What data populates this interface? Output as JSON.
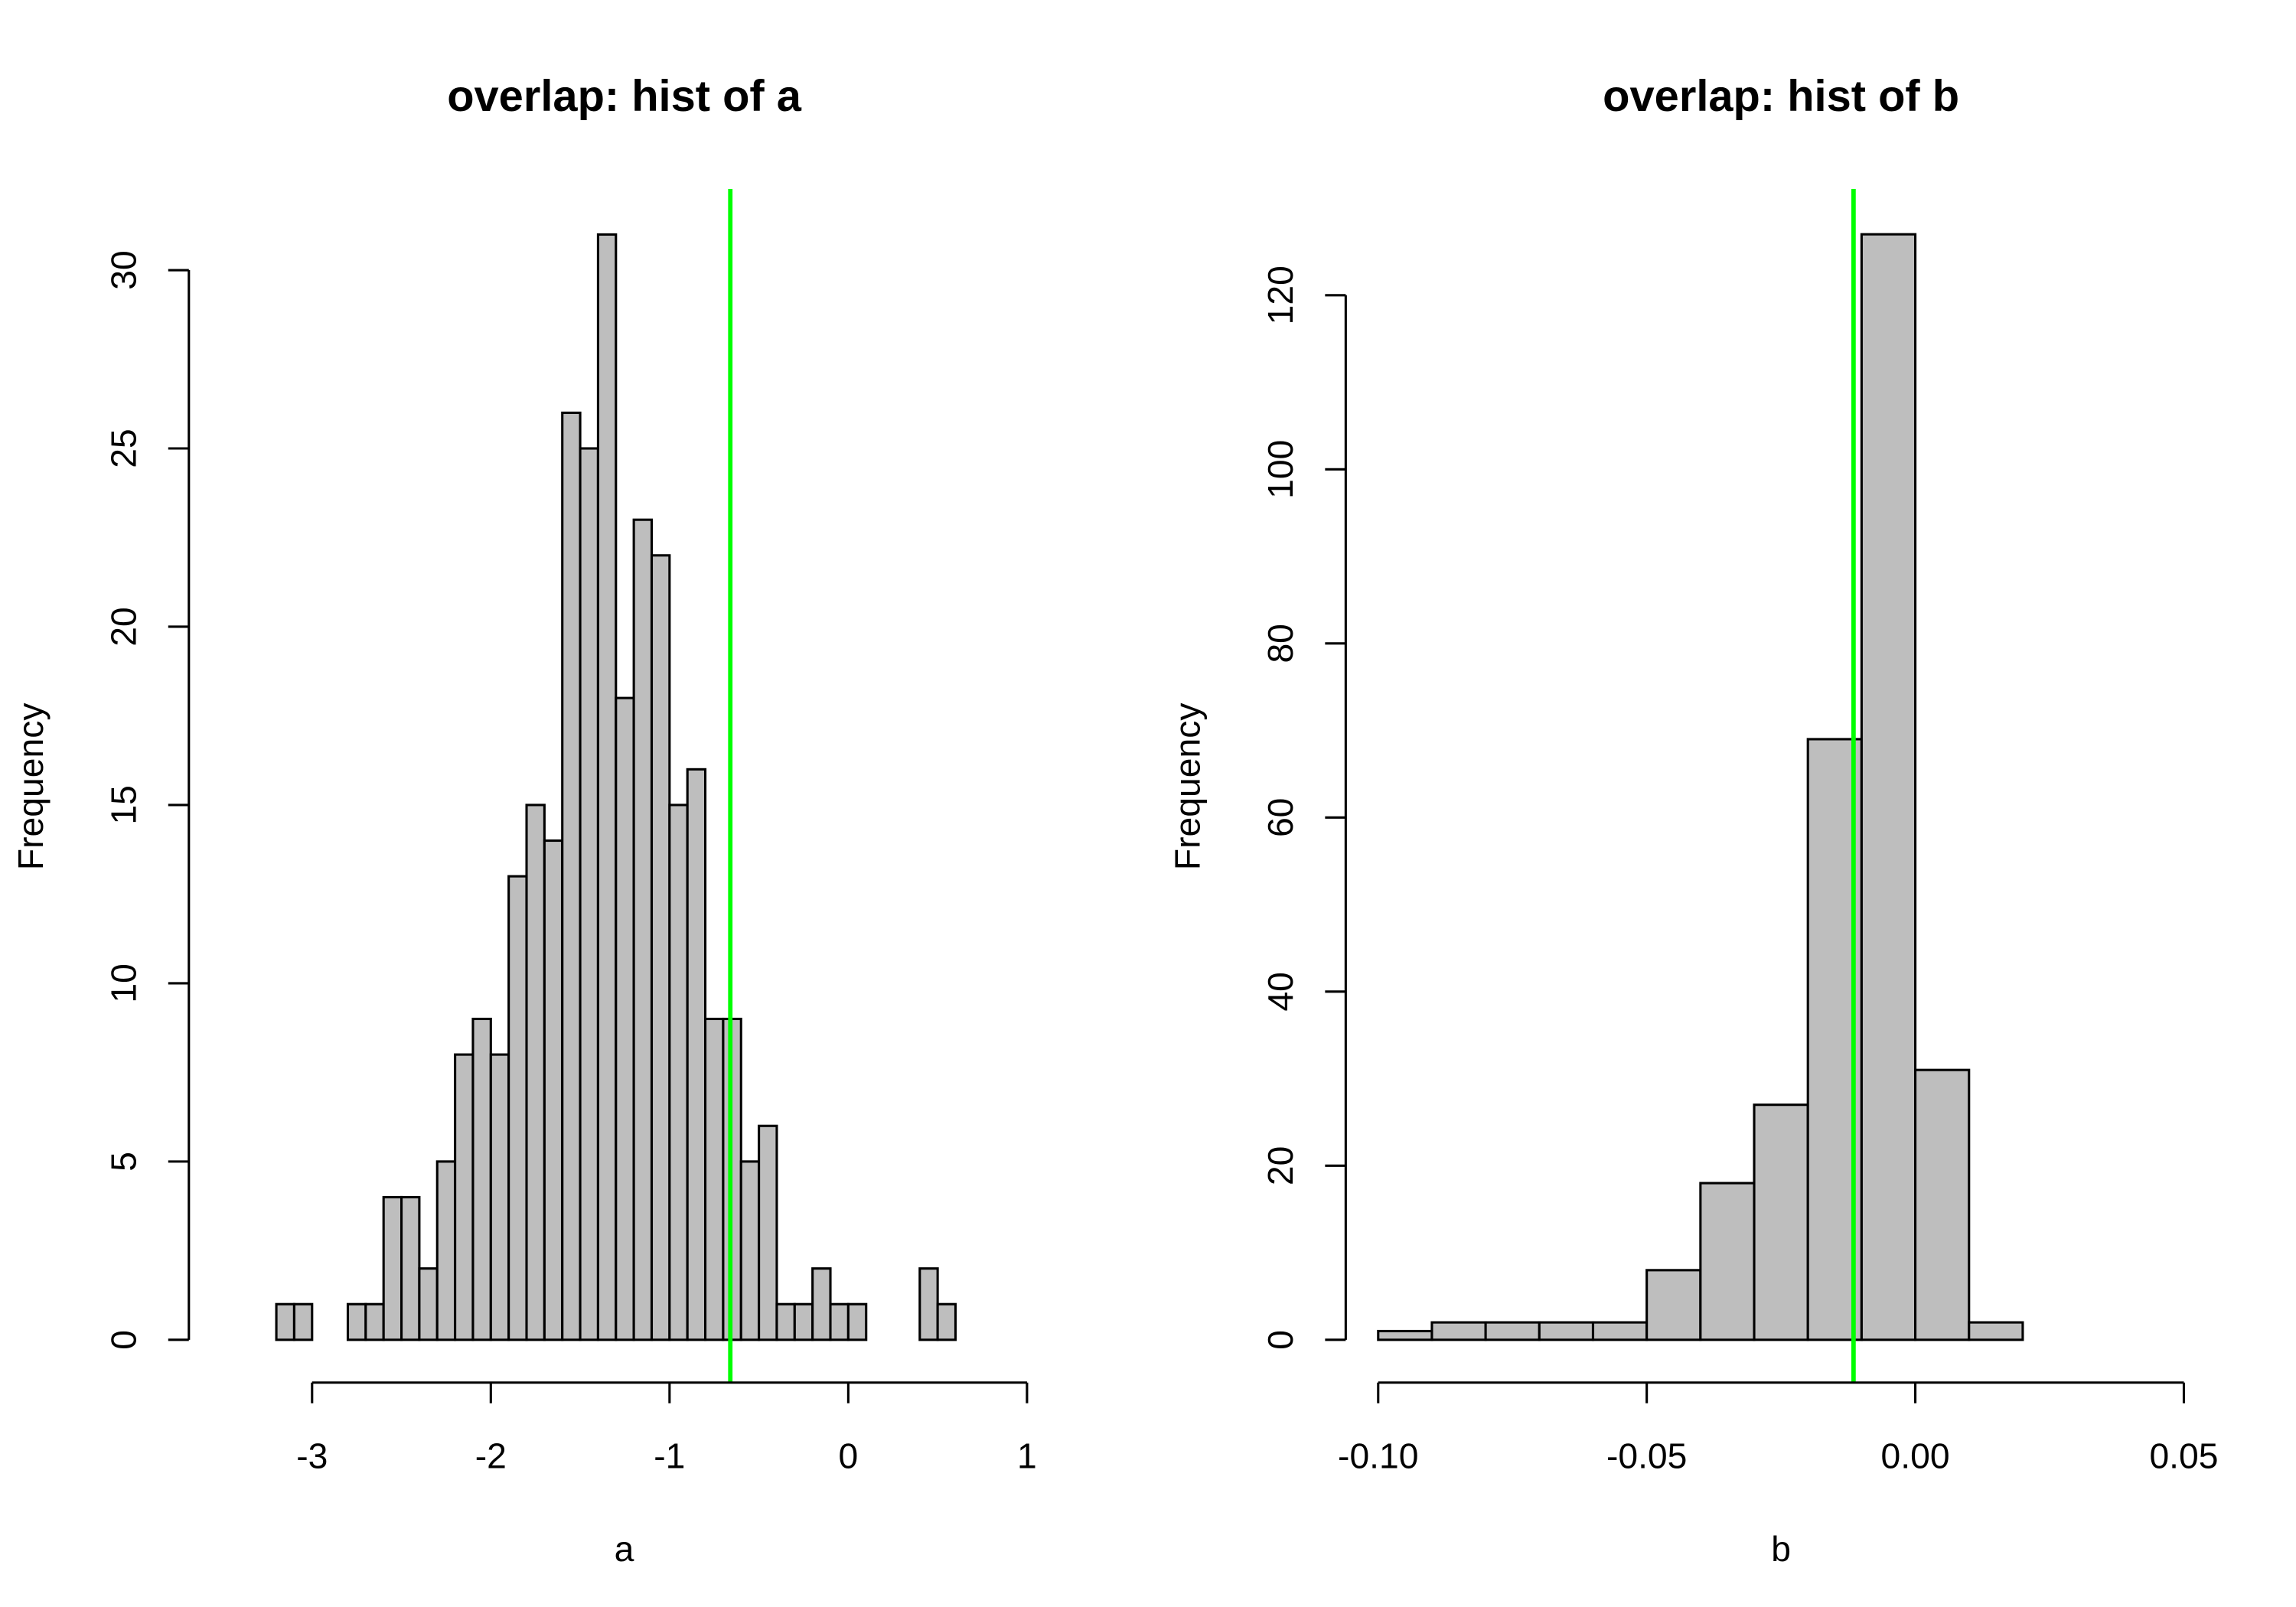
{
  "chart_data": [
    {
      "type": "bar",
      "title": "overlap: hist of a",
      "xlabel": "a",
      "ylabel": "Frequency",
      "xlim": [
        -3,
        1
      ],
      "xticks": [
        "-3",
        "-2",
        "-1",
        "0",
        "1"
      ],
      "yticks": [
        "0",
        "5",
        "10",
        "15",
        "20",
        "25",
        "30"
      ],
      "ylim": [
        0,
        30
      ],
      "bin_width": 0.1,
      "bin_edges_start": -3.2,
      "values": [
        1,
        1,
        0,
        0,
        1,
        1,
        4,
        4,
        2,
        5,
        8,
        9,
        8,
        13,
        15,
        14,
        26,
        25,
        31,
        18,
        23,
        22,
        15,
        16,
        9,
        9,
        5,
        6,
        1,
        1,
        2,
        1,
        1,
        0,
        0,
        0,
        2,
        1
      ],
      "bar_color": "#bebebe",
      "vline": {
        "x": -0.66,
        "color": "#00ff00"
      }
    },
    {
      "type": "bar",
      "title": "overlap: hist of b",
      "xlabel": "b",
      "ylabel": "Frequency",
      "xlim": [
        -0.1,
        0.05
      ],
      "xticks": [
        "-0.10",
        "-0.05",
        "0.00",
        "0.05"
      ],
      "yticks": [
        "0",
        "20",
        "40",
        "60",
        "80",
        "100",
        "120"
      ],
      "ylim": [
        0,
        120
      ],
      "bin_width": 0.01,
      "bin_edges_start": -0.1,
      "values": [
        1,
        2,
        2,
        2,
        2,
        8,
        18,
        27,
        69,
        127,
        31,
        2
      ],
      "bar_color": "#bebebe",
      "vline": {
        "x": -0.0115,
        "color": "#00ff00"
      }
    }
  ]
}
